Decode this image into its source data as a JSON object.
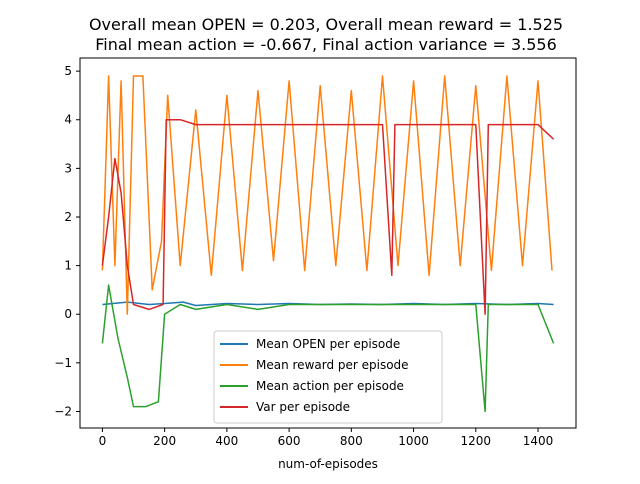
{
  "chart_data": {
    "type": "line",
    "title_line1": "Overall mean OPEN = 0.203, Overall mean reward = 1.525",
    "title_line2": "Final mean action = -0.667, Final action variance = 3.556",
    "xlabel": "num-of-episodes",
    "ylabel": "",
    "xlim": [
      -72,
      1522
    ],
    "ylim": [
      -2.34,
      5.27
    ],
    "xticks": [
      0,
      200,
      400,
      600,
      800,
      1000,
      1200,
      1400
    ],
    "yticks": [
      -2,
      -1,
      0,
      1,
      2,
      3,
      4,
      5
    ],
    "grid": false,
    "legend_position": "lower-center",
    "series": [
      {
        "name": "Mean OPEN per episode",
        "color": "#1f77b4",
        "points": [
          [
            0,
            0.2
          ],
          [
            80,
            0.25
          ],
          [
            150,
            0.2
          ],
          [
            200,
            0.22
          ],
          [
            260,
            0.25
          ],
          [
            300,
            0.18
          ],
          [
            400,
            0.22
          ],
          [
            500,
            0.2
          ],
          [
            600,
            0.22
          ],
          [
            700,
            0.2
          ],
          [
            800,
            0.21
          ],
          [
            900,
            0.2
          ],
          [
            1000,
            0.22
          ],
          [
            1100,
            0.2
          ],
          [
            1200,
            0.22
          ],
          [
            1300,
            0.2
          ],
          [
            1400,
            0.22
          ],
          [
            1450,
            0.2
          ]
        ]
      },
      {
        "name": "Mean reward per episode",
        "color": "#ff7f0e",
        "points": [
          [
            0,
            0.9
          ],
          [
            20,
            4.9
          ],
          [
            40,
            1.0
          ],
          [
            60,
            4.8
          ],
          [
            80,
            0.0
          ],
          [
            100,
            4.9
          ],
          [
            130,
            4.9
          ],
          [
            160,
            0.5
          ],
          [
            190,
            1.5
          ],
          [
            210,
            4.5
          ],
          [
            250,
            1.0
          ],
          [
            300,
            4.2
          ],
          [
            350,
            0.8
          ],
          [
            400,
            4.5
          ],
          [
            450,
            0.9
          ],
          [
            500,
            4.6
          ],
          [
            550,
            1.1
          ],
          [
            600,
            4.8
          ],
          [
            650,
            0.9
          ],
          [
            700,
            4.7
          ],
          [
            750,
            1.0
          ],
          [
            800,
            4.6
          ],
          [
            850,
            0.9
          ],
          [
            900,
            4.9
          ],
          [
            950,
            1.0
          ],
          [
            1000,
            4.8
          ],
          [
            1050,
            0.8
          ],
          [
            1100,
            4.9
          ],
          [
            1150,
            1.0
          ],
          [
            1200,
            4.7
          ],
          [
            1250,
            0.9
          ],
          [
            1300,
            4.9
          ],
          [
            1350,
            1.0
          ],
          [
            1400,
            4.8
          ],
          [
            1445,
            0.9
          ]
        ],
        "note_on_series": ""
      },
      {
        "name": "Mean action per episode",
        "color": "#2ca02c",
        "points": [
          [
            0,
            -0.6
          ],
          [
            20,
            0.6
          ],
          [
            50,
            -0.5
          ],
          [
            80,
            -1.3
          ],
          [
            100,
            -1.9
          ],
          [
            140,
            -1.9
          ],
          [
            180,
            -1.8
          ],
          [
            200,
            0.0
          ],
          [
            250,
            0.2
          ],
          [
            300,
            0.1
          ],
          [
            400,
            0.2
          ],
          [
            500,
            0.1
          ],
          [
            600,
            0.2
          ],
          [
            700,
            0.2
          ],
          [
            800,
            0.2
          ],
          [
            900,
            0.2
          ],
          [
            1000,
            0.2
          ],
          [
            1100,
            0.2
          ],
          [
            1200,
            0.2
          ],
          [
            1230,
            -2.0
          ],
          [
            1240,
            0.2
          ],
          [
            1300,
            0.2
          ],
          [
            1400,
            0.2
          ],
          [
            1450,
            -0.6
          ]
        ]
      },
      {
        "name": "Var per episode",
        "color": "#d62728",
        "points": [
          [
            0,
            1.0
          ],
          [
            20,
            2.0
          ],
          [
            40,
            3.2
          ],
          [
            60,
            2.5
          ],
          [
            80,
            1.0
          ],
          [
            100,
            0.2
          ],
          [
            150,
            0.1
          ],
          [
            195,
            0.2
          ],
          [
            205,
            4.0
          ],
          [
            250,
            4.0
          ],
          [
            300,
            3.9
          ],
          [
            400,
            3.9
          ],
          [
            500,
            3.9
          ],
          [
            600,
            3.9
          ],
          [
            700,
            3.9
          ],
          [
            800,
            3.9
          ],
          [
            900,
            3.9
          ],
          [
            930,
            0.8
          ],
          [
            940,
            3.9
          ],
          [
            1000,
            3.9
          ],
          [
            1100,
            3.9
          ],
          [
            1200,
            3.9
          ],
          [
            1230,
            0.0
          ],
          [
            1240,
            3.9
          ],
          [
            1300,
            3.9
          ],
          [
            1400,
            3.9
          ],
          [
            1450,
            3.6
          ]
        ]
      }
    ]
  }
}
